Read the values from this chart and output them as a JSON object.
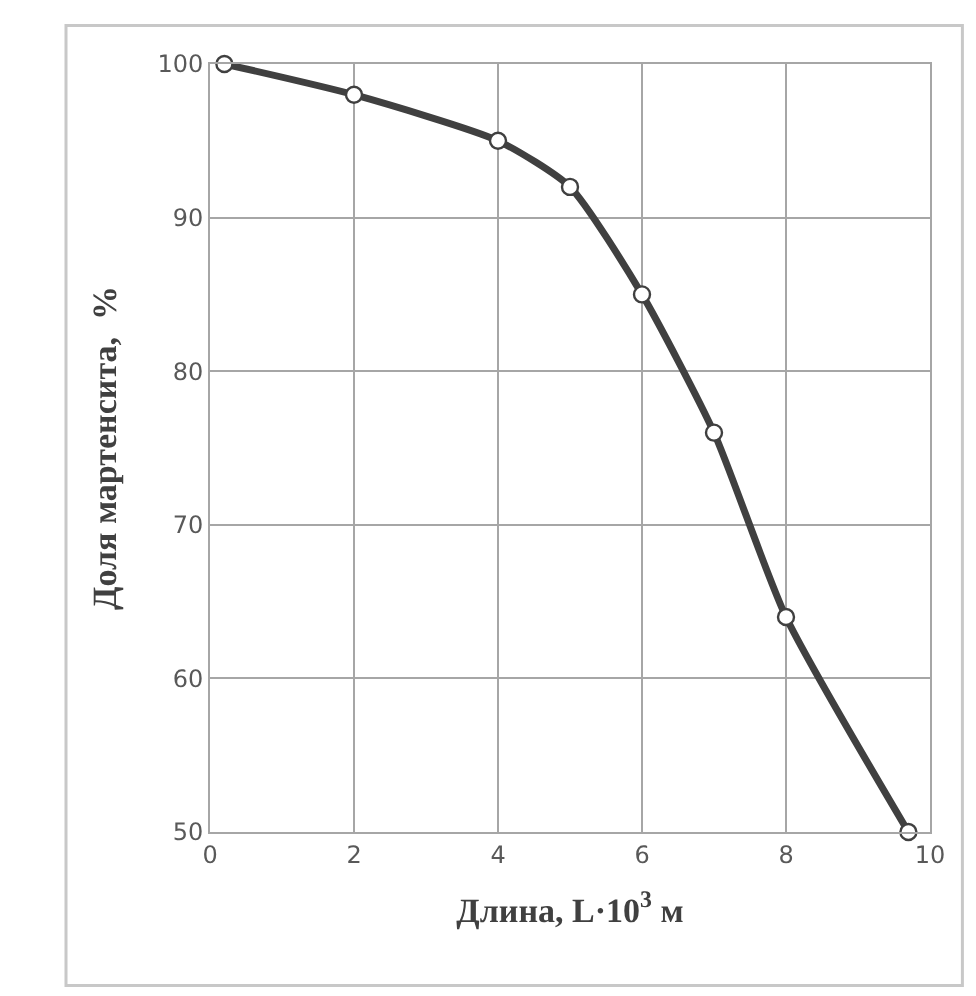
{
  "chart_data": {
    "type": "line",
    "xlabel": "Длина, L·10$^{3}$ м",
    "ylabel": "Доля мартенсита,  %",
    "x": [
      0.2,
      2,
      4,
      5,
      6,
      7,
      8,
      9.7
    ],
    "series": [
      {
        "color": "#404040",
        "values": [
          100,
          98,
          95,
          92,
          85,
          76,
          64,
          50
        ]
      }
    ],
    "xlim": [
      0,
      10
    ],
    "xticks": [
      0,
      2,
      4,
      6,
      8,
      10
    ],
    "ylim": [
      50,
      100
    ],
    "yticks": [
      50,
      60,
      70,
      80,
      90,
      100
    ],
    "grid": true,
    "legend": false,
    "marker": "circle",
    "line_style": "solid"
  }
}
